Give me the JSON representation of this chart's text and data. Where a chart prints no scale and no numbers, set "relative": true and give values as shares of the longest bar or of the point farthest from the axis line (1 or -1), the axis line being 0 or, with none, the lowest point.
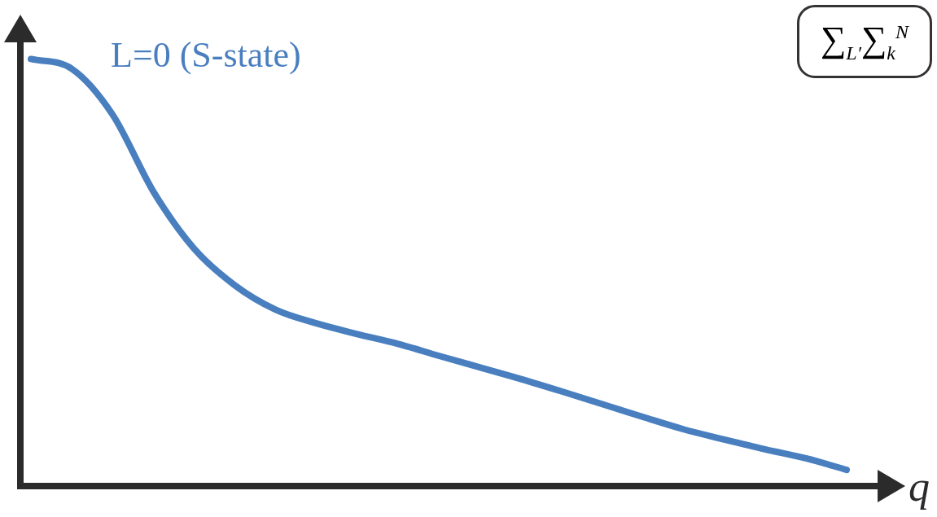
{
  "chart_data": {
    "type": "line",
    "relative": true,
    "xlabel": "q",
    "annotations": [
      "∑$_{L′}$∑$_{k}$$^{N}$"
    ],
    "categories": [
      null,
      null,
      null,
      null,
      null,
      null,
      null,
      null,
      null,
      null,
      null,
      null,
      null,
      null,
      null,
      null,
      null,
      null,
      null,
      null,
      null
    ],
    "series": [
      {
        "name": "L=0 (S-state)",
        "color": "#4a7fbf",
        "values": [
          1.0,
          0.977,
          0.87,
          0.69,
          0.556,
          0.47,
          0.413,
          0.381,
          0.356,
          0.333,
          0.305,
          0.278,
          0.251,
          0.222,
          0.192,
          0.162,
          0.133,
          0.109,
          0.086,
          0.065,
          0.038
        ]
      }
    ]
  }
}
